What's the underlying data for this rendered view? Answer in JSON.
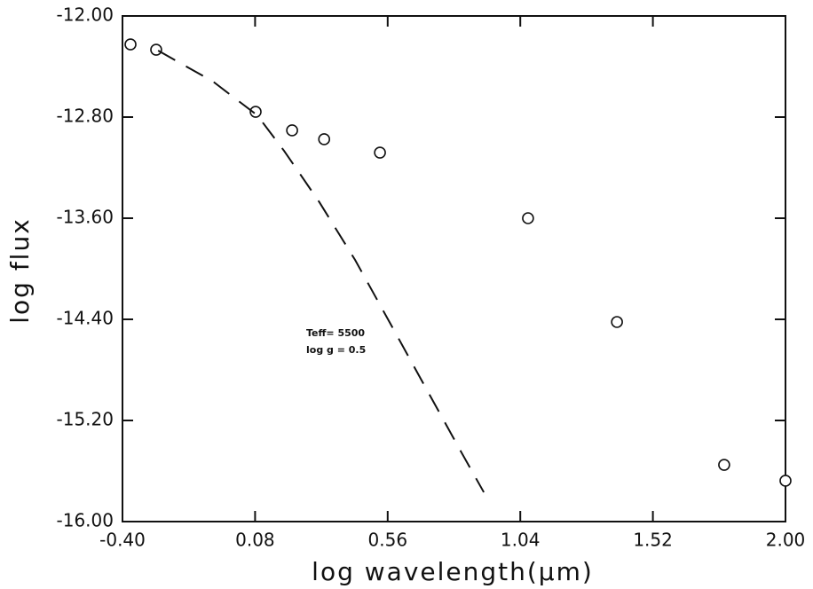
{
  "chart_data": {
    "type": "scatter",
    "x_label": "log wavelength(μm)",
    "y_label": "log flux",
    "annotations": [
      "Teff= 5500",
      "log g = 0.5"
    ],
    "xlim": [
      -0.4,
      2.0
    ],
    "xticks": [
      {
        "value": -0.4,
        "label": "-0.40"
      },
      0.08,
      0.56,
      1.04,
      1.52,
      {
        "value": 2.0,
        "label": "2.00"
      }
    ],
    "ylim": [
      -16.0,
      -12.0
    ],
    "yticks": [
      {
        "value": -16.0,
        "label": "-16.00"
      },
      {
        "value": -15.2,
        "label": "-15.20"
      },
      {
        "value": -14.4,
        "label": "-14.40"
      },
      {
        "value": -13.6,
        "label": "-13.60"
      },
      {
        "value": -12.8,
        "label": "-12.80"
      },
      {
        "value": -12.0,
        "label": "-12.00"
      }
    ],
    "grid": false,
    "series": [
      {
        "color": "#111111",
        "marker": "circle",
        "x": [
          -0.371,
          -0.278,
          0.082,
          0.214,
          0.33,
          0.532,
          1.068,
          1.39,
          1.778,
          2.0
        ],
        "values": [
          -12.225,
          -12.267,
          -12.758,
          -12.905,
          -12.975,
          -13.081,
          -13.6,
          -14.421,
          -15.551,
          -15.677
        ]
      },
      {
        "color": "#111111",
        "line": "dashed",
        "x": [
          -0.271,
          -0.072,
          0.088,
          0.185,
          0.313,
          0.442,
          0.57,
          0.699,
          0.827,
          0.908
        ],
        "values": [
          -12.274,
          -12.519,
          -12.786,
          -13.067,
          -13.474,
          -13.93,
          -14.435,
          -14.947,
          -15.453,
          -15.768
        ]
      }
    ]
  }
}
